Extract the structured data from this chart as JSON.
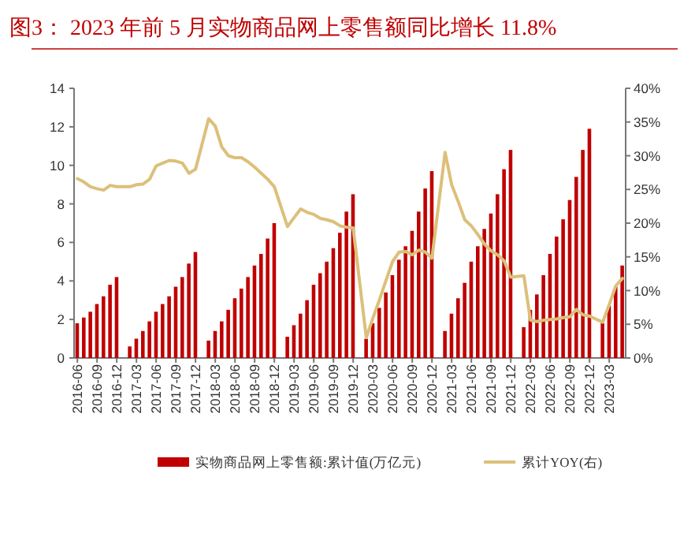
{
  "chart_data": {
    "type": "bar",
    "title": "图3：  2023 年前 5 月实物商品网上零售额同比增长 11.8%",
    "categories": [
      "2016-06",
      null,
      null,
      "2016-09",
      null,
      null,
      "2016-12",
      null,
      null,
      "2017-03",
      null,
      null,
      "2017-06",
      null,
      null,
      "2017-09",
      null,
      null,
      "2017-12",
      null,
      null,
      "2018-03",
      null,
      null,
      "2018-06",
      null,
      null,
      "2018-09",
      null,
      null,
      "2018-12",
      null,
      null,
      "2019-03",
      null,
      null,
      "2019-06",
      null,
      null,
      "2019-09",
      null,
      null,
      "2019-12",
      null,
      null,
      "2020-03",
      null,
      null,
      "2020-06",
      null,
      null,
      "2020-09",
      null,
      null,
      "2020-12",
      null,
      null,
      "2021-03",
      null,
      null,
      "2021-06",
      null,
      null,
      "2021-09",
      null,
      null,
      "2021-12",
      null,
      null,
      "2022-03",
      null,
      null,
      "2022-06",
      null,
      null,
      "2022-09",
      null,
      null,
      "2022-12",
      null,
      null,
      "2023-03",
      null,
      null
    ],
    "series": [
      {
        "name": "实物商品网上零售额:累计值(万亿元)",
        "color": "#c00000",
        "values": [
          1.8,
          2.1,
          2.4,
          2.8,
          3.2,
          3.8,
          4.2,
          null,
          0.6,
          1.0,
          1.4,
          1.9,
          2.4,
          2.8,
          3.2,
          3.7,
          4.2,
          4.9,
          5.5,
          null,
          0.9,
          1.4,
          1.9,
          2.5,
          3.1,
          3.6,
          4.2,
          4.8,
          5.4,
          6.2,
          7.0,
          null,
          1.1,
          1.7,
          2.3,
          3.0,
          3.8,
          4.4,
          5.0,
          5.7,
          6.5,
          7.6,
          8.5,
          null,
          1.0,
          1.8,
          2.6,
          3.4,
          4.3,
          5.1,
          5.8,
          6.6,
          7.6,
          8.8,
          9.7,
          null,
          1.4,
          2.3,
          3.1,
          3.9,
          5.0,
          5.8,
          6.7,
          7.5,
          8.5,
          9.8,
          10.8,
          null,
          1.6,
          2.5,
          3.3,
          4.3,
          5.4,
          6.3,
          7.2,
          8.2,
          9.4,
          10.8,
          11.9,
          null,
          1.8,
          2.7,
          3.7,
          4.8
        ]
      },
      {
        "name": "累计YOY(右)",
        "type": "line",
        "axis": "y2",
        "color": "#dcc07a",
        "values": [
          26.6,
          26.1,
          25.4,
          25.1,
          24.9,
          25.6,
          25.4,
          null,
          25.4,
          25.7,
          25.8,
          26.5,
          28.5,
          28.9,
          29.3,
          29.2,
          28.9,
          27.4,
          28.0,
          null,
          35.5,
          34.4,
          31.3,
          30.0,
          29.7,
          29.7,
          29.1,
          28.3,
          27.4,
          26.5,
          25.4,
          null,
          19.5,
          20.8,
          22.1,
          21.6,
          21.3,
          20.7,
          20.5,
          20.2,
          19.6,
          19.4,
          19.3,
          null,
          3.0,
          5.9,
          8.6,
          11.5,
          14.3,
          15.7,
          15.8,
          15.3,
          16.0,
          15.7,
          14.8,
          null,
          30.5,
          25.7,
          23.2,
          20.5,
          19.6,
          18.3,
          16.9,
          15.9,
          15.3,
          14.4,
          12.0,
          null,
          12.2,
          5.6,
          5.4,
          5.6,
          5.7,
          5.8,
          6.0,
          6.1,
          7.2,
          6.4,
          6.2,
          null,
          5.3,
          7.9,
          10.7,
          11.8
        ]
      }
    ],
    "ylim": [
      0,
      14
    ],
    "yticks": [
      0,
      2,
      4,
      6,
      8,
      10,
      12,
      14
    ],
    "y2lim": [
      0,
      40
    ],
    "y2ticks": [
      {
        "value": 0,
        "label": "0%"
      },
      {
        "value": 5,
        "label": "5%"
      },
      {
        "value": 10,
        "label": "10%"
      },
      {
        "value": 15,
        "label": "15%"
      },
      {
        "value": 20,
        "label": "20%"
      },
      {
        "value": 25,
        "label": "25%"
      },
      {
        "value": 30,
        "label": "30%"
      },
      {
        "value": 35,
        "label": "35%"
      },
      {
        "value": 40,
        "label": "40%"
      }
    ],
    "grid": false,
    "legend": "bottom"
  }
}
